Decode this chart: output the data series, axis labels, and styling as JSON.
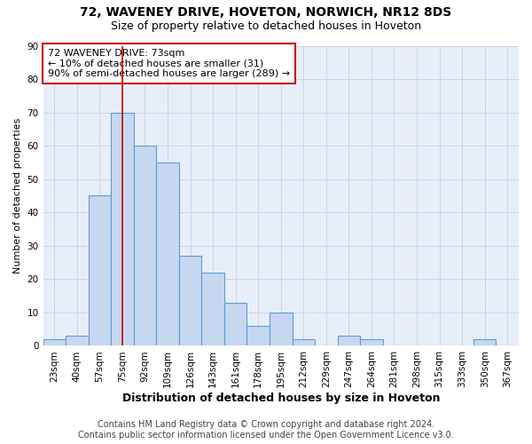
{
  "title1": "72, WAVENEY DRIVE, HOVETON, NORWICH, NR12 8DS",
  "title2": "Size of property relative to detached houses in Hoveton",
  "xlabel": "Distribution of detached houses by size in Hoveton",
  "ylabel": "Number of detached properties",
  "bin_labels": [
    "23sqm",
    "40sqm",
    "57sqm",
    "75sqm",
    "92sqm",
    "109sqm",
    "126sqm",
    "143sqm",
    "161sqm",
    "178sqm",
    "195sqm",
    "212sqm",
    "229sqm",
    "247sqm",
    "264sqm",
    "281sqm",
    "298sqm",
    "315sqm",
    "333sqm",
    "350sqm",
    "367sqm"
  ],
  "bar_heights": [
    2,
    3,
    45,
    70,
    60,
    55,
    27,
    22,
    13,
    6,
    10,
    2,
    0,
    3,
    2,
    0,
    0,
    0,
    0,
    2,
    0
  ],
  "bar_color": "#c5d8f0",
  "bar_edge_color": "#5b9bd5",
  "vline_x": 3,
  "vline_color": "#cc0000",
  "annotation_text": "72 WAVENEY DRIVE: 73sqm\n← 10% of detached houses are smaller (31)\n90% of semi-detached houses are larger (289) →",
  "annotation_box_color": "#ffffff",
  "annotation_box_edge": "#cc0000",
  "ylim": [
    0,
    90
  ],
  "yticks": [
    0,
    10,
    20,
    30,
    40,
    50,
    60,
    70,
    80,
    90
  ],
  "grid_color": "#c8d4e8",
  "bg_color": "#e8eef8",
  "footer_text": "Contains HM Land Registry data © Crown copyright and database right 2024.\nContains public sector information licensed under the Open Government Licence v3.0.",
  "title1_fontsize": 10,
  "title2_fontsize": 9,
  "xlabel_fontsize": 9,
  "ylabel_fontsize": 8,
  "tick_fontsize": 7.5,
  "annot_fontsize": 8,
  "footer_fontsize": 7
}
